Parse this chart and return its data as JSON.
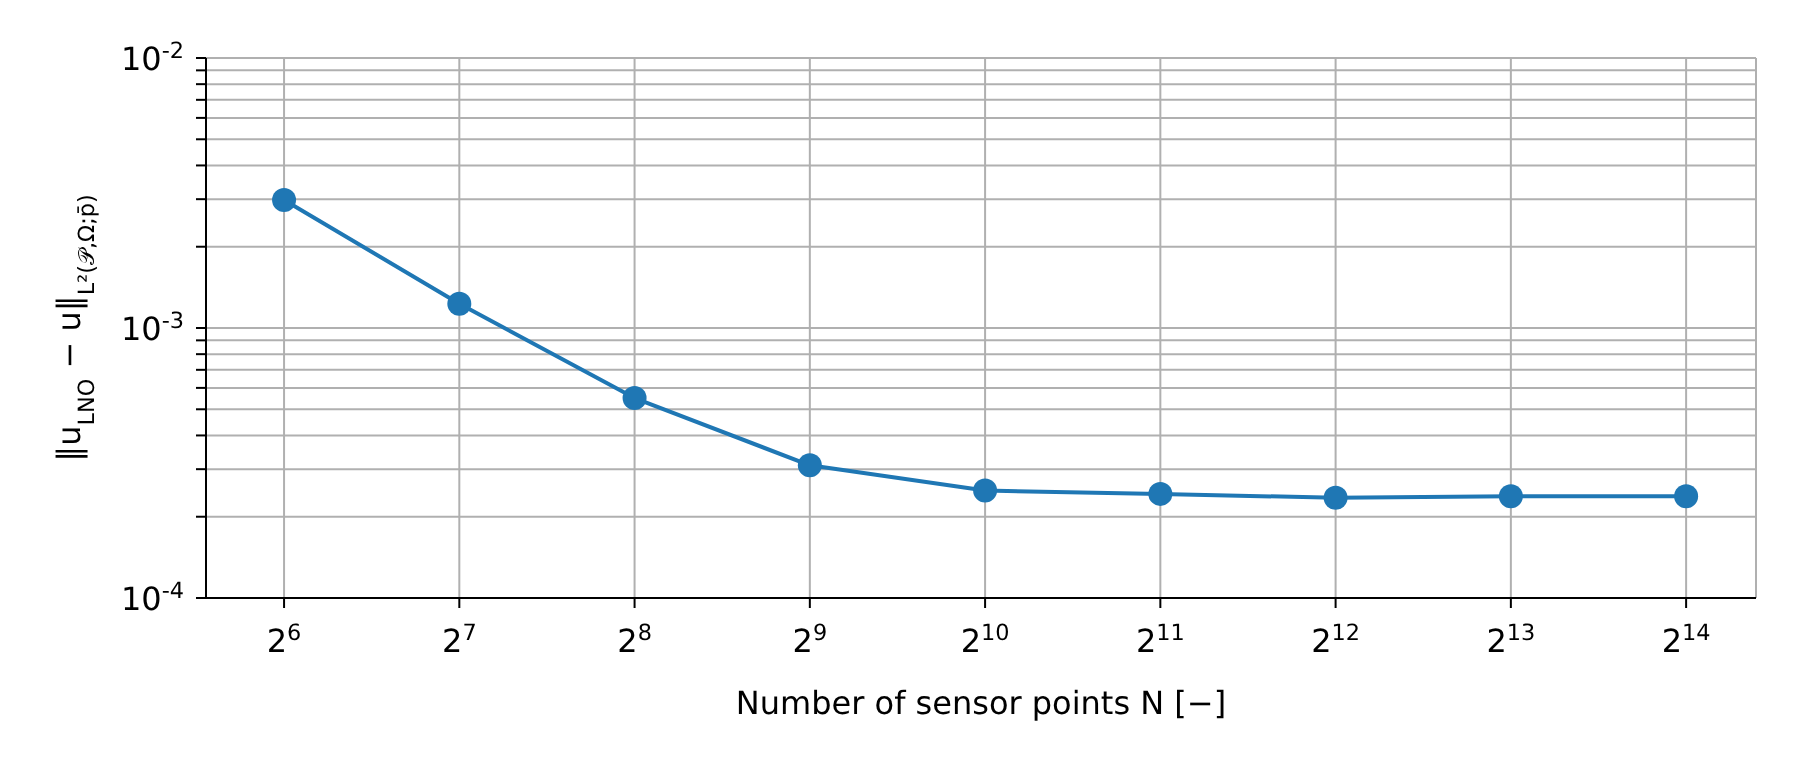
{
  "chart_data": {
    "type": "line",
    "xlabel": "Number of sensor points N [−]",
    "ylabel": "‖u$_{LNO}$ − u‖$_{L²(𝒫,Ω;p̄)}$",
    "x": [
      64,
      128,
      256,
      512,
      1024,
      2048,
      4096,
      8192,
      16384
    ],
    "series": [
      {
        "color": "#1f77b4",
        "values": [
          0.00298,
          0.00123,
          0.00055,
          0.00031,
          0.00025,
          0.000243,
          0.000235,
          0.000238,
          0.000238
        ]
      }
    ],
    "log": "xy",
    "xlim": [
      47,
      21600
    ],
    "xticks": [
      {
        "value": 64,
        "label": "2$^{6}$"
      },
      {
        "value": 128,
        "label": "2$^{7}$"
      },
      {
        "value": 256,
        "label": "2$^{8}$"
      },
      {
        "value": 512,
        "label": "2$^{9}$"
      },
      {
        "value": 1024,
        "label": "2$^{10}$"
      },
      {
        "value": 2048,
        "label": "2$^{11}$"
      },
      {
        "value": 4096,
        "label": "2$^{12}$"
      },
      {
        "value": 8192,
        "label": "2$^{13}$"
      },
      {
        "value": 16384,
        "label": "2$^{14}$"
      }
    ],
    "ylim": [
      0.0001,
      0.01
    ],
    "yticks": [
      {
        "value": 0.0001,
        "label": "10$^{-4}$"
      },
      {
        "value": 0.0002,
        "label": null
      },
      {
        "value": 0.0003,
        "label": null
      },
      {
        "value": 0.0004,
        "label": null
      },
      {
        "value": 0.0005,
        "label": null
      },
      {
        "value": 0.0006,
        "label": null
      },
      {
        "value": 0.0007,
        "label": null
      },
      {
        "value": 0.0008,
        "label": null
      },
      {
        "value": 0.0009,
        "label": null
      },
      {
        "value": 0.001,
        "label": "10$^{-3}$"
      },
      {
        "value": 0.002,
        "label": null
      },
      {
        "value": 0.003,
        "label": null
      },
      {
        "value": 0.004,
        "label": null
      },
      {
        "value": 0.005,
        "label": null
      },
      {
        "value": 0.006,
        "label": null
      },
      {
        "value": 0.007,
        "label": null
      },
      {
        "value": 0.008,
        "label": null
      },
      {
        "value": 0.009,
        "label": null
      },
      {
        "value": 0.01,
        "label": "10$^{-2}$"
      }
    ],
    "grid": true,
    "marker": "circle",
    "line_style": "solid",
    "legend": false
  }
}
